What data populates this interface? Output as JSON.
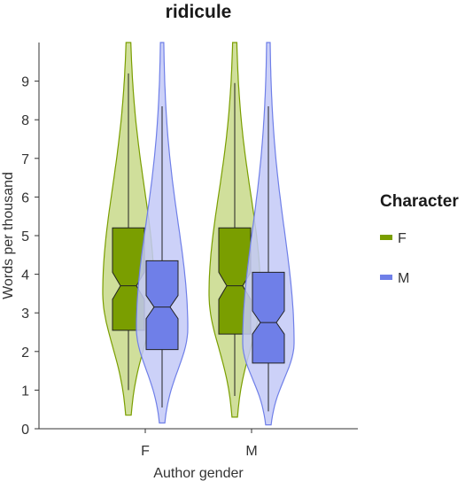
{
  "chart_data": {
    "type": "violin",
    "title": "ridicule",
    "xlabel": "Author gender",
    "ylabel": "Words per thousand",
    "categories": [
      "F",
      "M"
    ],
    "yticks": [
      0,
      1,
      2,
      3,
      4,
      5,
      6,
      7,
      8,
      9
    ],
    "ylim": [
      0,
      10
    ],
    "grid": false,
    "legend": {
      "title": "Character",
      "position": "right",
      "entries": [
        "F",
        "M"
      ]
    },
    "series": [
      {
        "name": "F",
        "color": "#7a9e00",
        "fill": "#c8d98a",
        "box": [
          {
            "category": "F",
            "whisker_low": 1.0,
            "q1": 2.55,
            "median": 3.7,
            "q3": 5.2,
            "whisker_high": 9.2,
            "notch_low": 3.35,
            "notch_high": 4.05
          },
          {
            "category": "M",
            "whisker_low": 0.85,
            "q1": 2.45,
            "median": 3.7,
            "q3": 5.2,
            "whisker_high": 8.95,
            "notch_low": 3.35,
            "notch_high": 4.05
          }
        ],
        "violin_min": [
          0.35,
          0.3
        ],
        "violin_max": [
          10,
          10
        ]
      },
      {
        "name": "M",
        "color": "#6f7fe8",
        "fill": "#c3c9f7",
        "box": [
          {
            "category": "F",
            "whisker_low": 0.55,
            "q1": 2.05,
            "median": 3.15,
            "q3": 4.35,
            "whisker_high": 8.35,
            "notch_low": 2.85,
            "notch_high": 3.45
          },
          {
            "category": "M",
            "whisker_low": 0.45,
            "q1": 1.7,
            "median": 2.75,
            "q3": 4.05,
            "whisker_high": 8.35,
            "notch_low": 2.45,
            "notch_high": 3.05
          }
        ],
        "violin_min": [
          0.15,
          0.1
        ],
        "violin_max": [
          10,
          10
        ]
      }
    ]
  }
}
